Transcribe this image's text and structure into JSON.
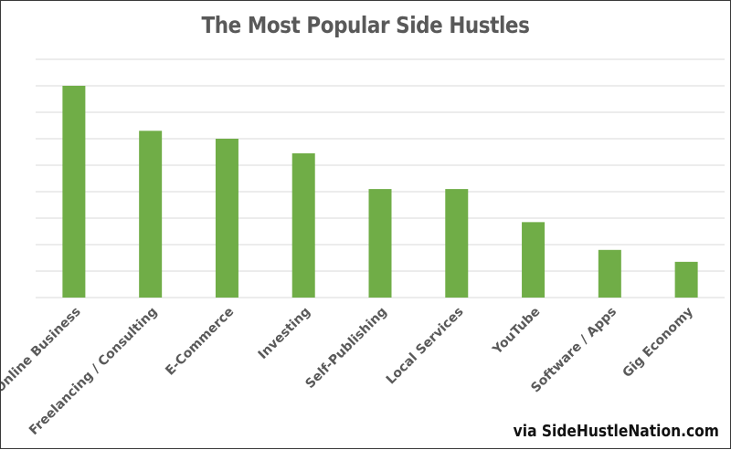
{
  "chart_data": {
    "type": "bar",
    "title": "The Most Popular Side Hustles",
    "categories": [
      "Online Business",
      "Freelancing / Consulting",
      "E-Commerce",
      "Investing",
      "Self-Publishing",
      "Local Services",
      "YouTube",
      "Software / Apps",
      "Gig Economy"
    ],
    "values": [
      8.0,
      6.3,
      6.0,
      5.45,
      4.1,
      4.1,
      2.85,
      1.8,
      1.35
    ],
    "ylim": [
      0,
      9
    ],
    "ytick_step": 1,
    "grid": true,
    "xlabel": "",
    "ylabel": "",
    "bar_color": "#70ad47",
    "grid_color": "#d9d9d9",
    "label_color": "#595959"
  },
  "footer": {
    "credit": "via SideHustleNation.com"
  }
}
